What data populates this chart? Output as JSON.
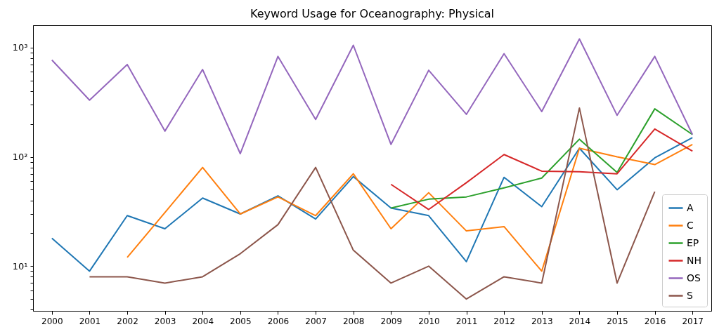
{
  "chart_data": {
    "type": "line",
    "title": "Keyword Usage for Oceanography: Physical",
    "categories": [
      "2000",
      "2001",
      "2002",
      "2003",
      "2004",
      "2005",
      "2006",
      "2007",
      "2008",
      "2009",
      "2010",
      "2011",
      "2012",
      "2013",
      "2014",
      "2015",
      "2016",
      "2017"
    ],
    "series": [
      {
        "name": "A",
        "color": "#1f77b4",
        "values": [
          18,
          9,
          29,
          22,
          42,
          30,
          44,
          27,
          66,
          34,
          29,
          11,
          65,
          35,
          120,
          50,
          98,
          150
        ]
      },
      {
        "name": "C",
        "color": "#ff7f0e",
        "values": [
          null,
          null,
          12,
          31,
          80,
          30,
          43,
          29,
          70,
          22,
          47,
          21,
          23,
          9,
          120,
          100,
          85,
          130
        ]
      },
      {
        "name": "EP",
        "color": "#2ca02c",
        "values": [
          null,
          null,
          null,
          null,
          null,
          null,
          null,
          null,
          null,
          34,
          41,
          43,
          52,
          64,
          145,
          72,
          275,
          160
        ]
      },
      {
        "name": "NH",
        "color": "#d62728",
        "values": [
          null,
          null,
          null,
          null,
          null,
          null,
          null,
          null,
          null,
          56,
          33,
          58,
          105,
          74,
          73,
          70,
          180,
          113
        ]
      },
      {
        "name": "OS",
        "color": "#9467bd",
        "values": [
          770,
          330,
          700,
          172,
          630,
          107,
          830,
          220,
          1050,
          130,
          620,
          245,
          880,
          260,
          1200,
          240,
          830,
          160
        ]
      },
      {
        "name": "S",
        "color": "#8c564b",
        "values": [
          null,
          8,
          8,
          7,
          8,
          13,
          24,
          80,
          14,
          7,
          10,
          5,
          8,
          7,
          280,
          7,
          48,
          null
        ]
      }
    ],
    "log": true,
    "ylim": [
      3.9,
      1600
    ],
    "yticks": [
      {
        "value": 4,
        "label": null
      },
      {
        "value": 5,
        "label": null
      },
      {
        "value": 6,
        "label": null
      },
      {
        "value": 7,
        "label": null
      },
      {
        "value": 8,
        "label": null
      },
      {
        "value": 9,
        "label": null
      },
      {
        "value": 10,
        "label": "10¹"
      },
      {
        "value": 20,
        "label": null
      },
      {
        "value": 30,
        "label": null
      },
      {
        "value": 40,
        "label": null
      },
      {
        "value": 50,
        "label": null
      },
      {
        "value": 60,
        "label": null
      },
      {
        "value": 70,
        "label": null
      },
      {
        "value": 80,
        "label": null
      },
      {
        "value": 90,
        "label": null
      },
      {
        "value": 100,
        "label": "10²"
      },
      {
        "value": 200,
        "label": null
      },
      {
        "value": 300,
        "label": null
      },
      {
        "value": 400,
        "label": null
      },
      {
        "value": 500,
        "label": null
      },
      {
        "value": 600,
        "label": null
      },
      {
        "value": 700,
        "label": null
      },
      {
        "value": 800,
        "label": null
      },
      {
        "value": 900,
        "label": null
      },
      {
        "value": 1000,
        "label": "10³"
      }
    ],
    "legend": "bottom right",
    "grid": false
  }
}
